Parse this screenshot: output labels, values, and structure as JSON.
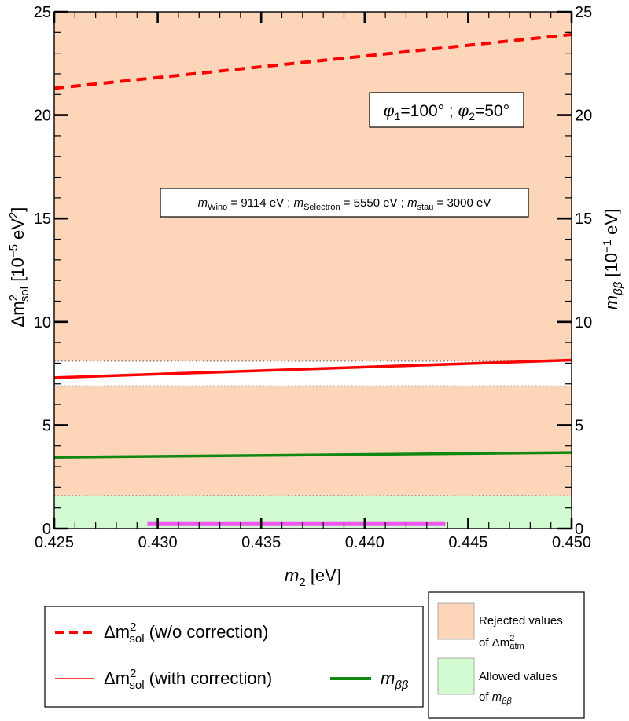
{
  "chart_data": {
    "type": "line",
    "x_range": [
      0.425,
      0.45
    ],
    "y_range": [
      0,
      25
    ],
    "x_ticks": [
      "0.425",
      "0.430",
      "0.435",
      "0.440",
      "0.445",
      "0.450"
    ],
    "y_ticks": [
      "0",
      "5",
      "10",
      "15",
      "20",
      "25"
    ],
    "y2_ticks": [
      "0",
      "5",
      "10",
      "15",
      "20",
      "25"
    ],
    "xlabel_main": "m",
    "xlabel_sub": "2",
    "xlabel_unit": " [eV]",
    "ylabel_left": {
      "base": "Δm",
      "sup": "2",
      "sub": "sol",
      "unit_pre": " [10",
      "unit_exp": "−5",
      "unit_post": " eV",
      "unit_sup": "2",
      "unit_end": "]"
    },
    "ylabel_right": {
      "base": "m",
      "sub": "ββ",
      "unit_pre": " [10",
      "unit_exp": "−1",
      "unit_post": " eV]"
    },
    "bands": [
      {
        "name": "rejected_upper",
        "from": 8.1,
        "to": 25,
        "color": "#fdd5b9"
      },
      {
        "name": "rejected_lower",
        "from": 1.6,
        "to": 6.9,
        "color": "#fdd5b9"
      },
      {
        "name": "allowed",
        "from": 0,
        "to": 1.6,
        "color": "#d2fbd2"
      }
    ],
    "band_boundaries": [
      8.1,
      6.9,
      1.6
    ],
    "series": [
      {
        "key": "wo",
        "x": [
          0.425,
          0.45
        ],
        "y": [
          21.3,
          23.9
        ],
        "color": "#ff0000",
        "dash": "dashed"
      },
      {
        "key": "with",
        "x": [
          0.425,
          0.45
        ],
        "y": [
          7.3,
          8.15
        ],
        "color": "#ff0000",
        "dash": "solid"
      },
      {
        "key": "mbb",
        "x": [
          0.425,
          0.45
        ],
        "y": [
          3.45,
          3.68
        ],
        "color": "#118811",
        "dash": "solid"
      }
    ],
    "magenta_range": {
      "x": [
        0.4295,
        0.4439
      ],
      "y": 0.2,
      "color": "#ee55ee"
    },
    "phase_box": {
      "phi1": "φ",
      "phi1_sub": "1",
      "phi1_val": "=100° ; ",
      "phi2": "φ",
      "phi2_sub": "2",
      "phi2_val": "=50°"
    },
    "mass_box": {
      "m1": "m",
      "m1_sub": "Wino",
      "m1_val": " = 9114 eV ;  ",
      "m2": "m",
      "m2_sub": "Selectron",
      "m2_val": " = 5550 eV ; ",
      "m3": "m",
      "m3_sub": "stau",
      "m3_val": " = 3000 eV"
    },
    "legend": {
      "wo": {
        "pre": "Δm",
        "sup": "2",
        "sub": "sol",
        "post": " (w/o correction)"
      },
      "with": {
        "pre": "Δm",
        "sup": "2",
        "sub": "sol",
        "post": " (with correction)"
      },
      "mbb": {
        "pre": "m",
        "sub": "ββ"
      }
    },
    "shade_legend": {
      "rejected_line1": "Rejected values",
      "rejected_line2_pre": "of Δm",
      "rejected_line2_sup": "2",
      "rejected_line2_sub": "atm",
      "allowed_line1": "Allowed values",
      "allowed_line2_pre": "of ",
      "allowed_line2_m": "m",
      "allowed_line2_sub": "ββ"
    }
  }
}
